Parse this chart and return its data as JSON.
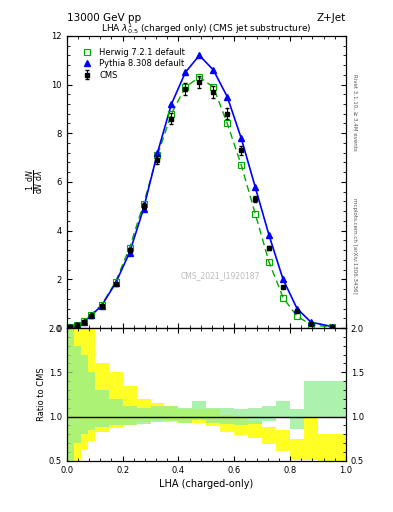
{
  "title": "13000 GeV pp",
  "title_right": "Z+Jet",
  "plot_title": "LHA $\\lambda^{1}_{0.5}$ (charged only) (CMS jet substructure)",
  "xlabel": "LHA (charged-only)",
  "ylabel": "$\\frac{1}{\\mathrm{d}N} \\frac{\\mathrm{d}N}{\\mathrm{d}\\lambda}$",
  "ylabel_ratio": "Ratio to CMS",
  "watermark": "CMS_2021_I1920187",
  "rivet_text": "Rivet 3.1.10, ≥ 3.4M events",
  "arxiv_text": "mcplots.cern.ch [arXiv:1306.3436]",
  "lha_bins": [
    0.0,
    0.025,
    0.05,
    0.075,
    0.1,
    0.15,
    0.2,
    0.25,
    0.3,
    0.35,
    0.4,
    0.45,
    0.5,
    0.55,
    0.6,
    0.65,
    0.7,
    0.75,
    0.8,
    0.85,
    0.9,
    1.0
  ],
  "cms_x": [
    0.0125,
    0.0375,
    0.0625,
    0.0875,
    0.125,
    0.175,
    0.225,
    0.275,
    0.325,
    0.375,
    0.425,
    0.475,
    0.525,
    0.575,
    0.625,
    0.675,
    0.725,
    0.775,
    0.825,
    0.875,
    0.95
  ],
  "cms_y": [
    0.05,
    0.12,
    0.25,
    0.5,
    0.9,
    1.8,
    3.2,
    5.0,
    6.9,
    8.6,
    9.8,
    10.1,
    9.7,
    8.8,
    7.3,
    5.3,
    3.3,
    1.7,
    0.7,
    0.18,
    0.04
  ],
  "herwig_x": [
    0.0125,
    0.0375,
    0.0625,
    0.0875,
    0.125,
    0.175,
    0.225,
    0.275,
    0.325,
    0.375,
    0.425,
    0.475,
    0.525,
    0.575,
    0.625,
    0.675,
    0.725,
    0.775,
    0.825,
    0.875,
    0.95
  ],
  "herwig_y": [
    0.06,
    0.14,
    0.28,
    0.55,
    0.95,
    1.9,
    3.3,
    5.1,
    7.1,
    8.8,
    9.9,
    10.3,
    9.9,
    8.4,
    6.7,
    4.7,
    2.7,
    1.25,
    0.48,
    0.14,
    0.03
  ],
  "pythia_x": [
    0.0125,
    0.0375,
    0.0625,
    0.0875,
    0.125,
    0.175,
    0.225,
    0.275,
    0.325,
    0.375,
    0.425,
    0.475,
    0.525,
    0.575,
    0.625,
    0.675,
    0.725,
    0.775,
    0.825,
    0.875,
    0.95
  ],
  "pythia_y": [
    0.06,
    0.13,
    0.26,
    0.52,
    0.92,
    1.85,
    3.1,
    4.9,
    7.2,
    9.2,
    10.5,
    11.2,
    10.6,
    9.5,
    7.8,
    5.8,
    3.8,
    2.0,
    0.8,
    0.24,
    0.06
  ],
  "cms_color": "#000000",
  "herwig_color": "#00aa00",
  "pythia_color": "#0000ff",
  "herwig_band_lo": [
    0.3,
    0.45,
    0.62,
    0.72,
    0.82,
    0.87,
    0.91,
    0.94,
    0.96,
    0.94,
    0.93,
    0.93,
    0.89,
    0.83,
    0.79,
    0.76,
    0.69,
    0.61,
    0.51,
    0.51,
    0.41
  ],
  "herwig_band_hi": [
    2.0,
    2.5,
    2.3,
    2.0,
    1.6,
    1.5,
    1.35,
    1.2,
    1.15,
    1.12,
    1.08,
    1.08,
    1.08,
    1.02,
    0.98,
    0.95,
    0.88,
    0.85,
    0.75,
    1.0,
    0.8
  ],
  "pythia_band_lo": [
    0.5,
    0.7,
    0.8,
    0.85,
    0.88,
    0.9,
    0.91,
    0.92,
    0.94,
    0.95,
    0.93,
    0.96,
    0.93,
    0.92,
    0.9,
    0.92,
    0.95,
    0.98,
    0.86,
    0.98,
    0.98
  ],
  "pythia_band_hi": [
    2.0,
    1.8,
    1.7,
    1.5,
    1.3,
    1.2,
    1.12,
    1.1,
    1.12,
    1.12,
    1.1,
    1.18,
    1.1,
    1.1,
    1.08,
    1.1,
    1.12,
    1.18,
    1.08,
    1.4,
    1.4
  ],
  "ylim_main": [
    0,
    12
  ],
  "ylim_ratio": [
    0.5,
    2.0
  ],
  "yticks_ratio": [
    0.5,
    1.0,
    1.5,
    2.0
  ]
}
